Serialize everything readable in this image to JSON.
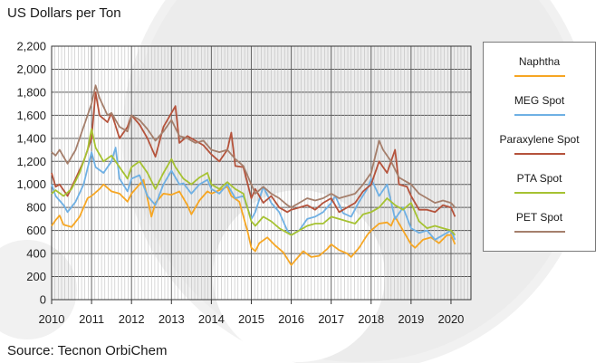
{
  "chart_data": {
    "type": "line",
    "ylabel": "US Dollars per Ton",
    "source": "Source: Tecnon OrbiChem",
    "ylim": [
      0,
      2200
    ],
    "yticks": [
      "0",
      "200",
      "400",
      "600",
      "800",
      "1,000",
      "1,200",
      "1,400",
      "1,600",
      "1,800",
      "2,000",
      "2,200"
    ],
    "xlim": [
      2010,
      2020.5
    ],
    "xticks": [
      "2010",
      "2011",
      "2012",
      "2013",
      "2014",
      "2015",
      "2016",
      "2017",
      "2018",
      "2019",
      "2020"
    ],
    "grid": true,
    "legend_position": "right",
    "series": [
      {
        "name": "Naphtha",
        "color": "#f6a623",
        "points": [
          [
            2010.0,
            640
          ],
          [
            2010.1,
            690
          ],
          [
            2010.2,
            730
          ],
          [
            2010.3,
            650
          ],
          [
            2010.5,
            630
          ],
          [
            2010.7,
            720
          ],
          [
            2010.9,
            880
          ],
          [
            2011.0,
            900
          ],
          [
            2011.2,
            960
          ],
          [
            2011.3,
            1000
          ],
          [
            2011.5,
            940
          ],
          [
            2011.7,
            920
          ],
          [
            2011.9,
            850
          ],
          [
            2012.0,
            920
          ],
          [
            2012.2,
            1000
          ],
          [
            2012.3,
            1040
          ],
          [
            2012.4,
            880
          ],
          [
            2012.5,
            720
          ],
          [
            2012.6,
            840
          ],
          [
            2012.8,
            920
          ],
          [
            2013.0,
            910
          ],
          [
            2013.2,
            940
          ],
          [
            2013.4,
            820
          ],
          [
            2013.5,
            740
          ],
          [
            2013.7,
            860
          ],
          [
            2013.9,
            940
          ],
          [
            2014.0,
            920
          ],
          [
            2014.2,
            950
          ],
          [
            2014.4,
            980
          ],
          [
            2014.5,
            900
          ],
          [
            2014.7,
            850
          ],
          [
            2014.9,
            600
          ],
          [
            2015.0,
            450
          ],
          [
            2015.1,
            420
          ],
          [
            2015.2,
            490
          ],
          [
            2015.4,
            540
          ],
          [
            2015.6,
            470
          ],
          [
            2015.8,
            410
          ],
          [
            2016.0,
            300
          ],
          [
            2016.1,
            340
          ],
          [
            2016.3,
            420
          ],
          [
            2016.5,
            370
          ],
          [
            2016.7,
            380
          ],
          [
            2016.9,
            440
          ],
          [
            2017.0,
            480
          ],
          [
            2017.2,
            430
          ],
          [
            2017.4,
            400
          ],
          [
            2017.5,
            370
          ],
          [
            2017.7,
            450
          ],
          [
            2017.9,
            560
          ],
          [
            2018.0,
            600
          ],
          [
            2018.2,
            660
          ],
          [
            2018.4,
            670
          ],
          [
            2018.5,
            640
          ],
          [
            2018.6,
            720
          ],
          [
            2018.8,
            600
          ],
          [
            2019.0,
            480
          ],
          [
            2019.1,
            450
          ],
          [
            2019.3,
            520
          ],
          [
            2019.5,
            540
          ],
          [
            2019.7,
            490
          ],
          [
            2019.9,
            560
          ],
          [
            2020.0,
            560
          ],
          [
            2020.1,
            480
          ]
        ]
      },
      {
        "name": "MEG Spot",
        "color": "#6fb0e4",
        "points": [
          [
            2010.0,
            1000
          ],
          [
            2010.1,
            900
          ],
          [
            2010.3,
            820
          ],
          [
            2010.4,
            760
          ],
          [
            2010.6,
            850
          ],
          [
            2010.8,
            1000
          ],
          [
            2011.0,
            1280
          ],
          [
            2011.1,
            1150
          ],
          [
            2011.3,
            1100
          ],
          [
            2011.5,
            1200
          ],
          [
            2011.6,
            1320
          ],
          [
            2011.7,
            1050
          ],
          [
            2011.9,
            940
          ],
          [
            2012.0,
            1050
          ],
          [
            2012.2,
            1080
          ],
          [
            2012.4,
            900
          ],
          [
            2012.6,
            820
          ],
          [
            2012.8,
            1000
          ],
          [
            2013.0,
            1120
          ],
          [
            2013.2,
            1000
          ],
          [
            2013.3,
            1010
          ],
          [
            2013.5,
            920
          ],
          [
            2013.7,
            1000
          ],
          [
            2013.9,
            1040
          ],
          [
            2014.0,
            960
          ],
          [
            2014.2,
            920
          ],
          [
            2014.4,
            1000
          ],
          [
            2014.6,
            880
          ],
          [
            2014.8,
            900
          ],
          [
            2015.0,
            700
          ],
          [
            2015.1,
            760
          ],
          [
            2015.3,
            980
          ],
          [
            2015.5,
            840
          ],
          [
            2015.7,
            760
          ],
          [
            2015.9,
            600
          ],
          [
            2016.0,
            560
          ],
          [
            2016.2,
            600
          ],
          [
            2016.4,
            700
          ],
          [
            2016.6,
            720
          ],
          [
            2016.8,
            760
          ],
          [
            2017.0,
            840
          ],
          [
            2017.1,
            900
          ],
          [
            2017.3,
            750
          ],
          [
            2017.5,
            720
          ],
          [
            2017.7,
            850
          ],
          [
            2017.9,
            960
          ],
          [
            2018.0,
            1050
          ],
          [
            2018.2,
            900
          ],
          [
            2018.4,
            1000
          ],
          [
            2018.6,
            700
          ],
          [
            2018.8,
            800
          ],
          [
            2019.0,
            620
          ],
          [
            2019.2,
            580
          ],
          [
            2019.4,
            600
          ],
          [
            2019.6,
            520
          ],
          [
            2019.8,
            560
          ],
          [
            2020.0,
            600
          ],
          [
            2020.1,
            520
          ]
        ]
      },
      {
        "name": "Paraxylene Spot",
        "color": "#b5533c",
        "points": [
          [
            2010.0,
            1100
          ],
          [
            2010.1,
            980
          ],
          [
            2010.2,
            1000
          ],
          [
            2010.4,
            900
          ],
          [
            2010.6,
            1050
          ],
          [
            2010.8,
            1200
          ],
          [
            2011.0,
            1400
          ],
          [
            2011.1,
            1800
          ],
          [
            2011.2,
            1600
          ],
          [
            2011.4,
            1540
          ],
          [
            2011.5,
            1620
          ],
          [
            2011.7,
            1400
          ],
          [
            2011.9,
            1500
          ],
          [
            2012.0,
            1600
          ],
          [
            2012.2,
            1520
          ],
          [
            2012.4,
            1400
          ],
          [
            2012.6,
            1240
          ],
          [
            2012.8,
            1500
          ],
          [
            2013.0,
            1620
          ],
          [
            2013.1,
            1680
          ],
          [
            2013.2,
            1360
          ],
          [
            2013.4,
            1420
          ],
          [
            2013.6,
            1380
          ],
          [
            2013.8,
            1340
          ],
          [
            2014.0,
            1260
          ],
          [
            2014.2,
            1200
          ],
          [
            2014.4,
            1300
          ],
          [
            2014.5,
            1450
          ],
          [
            2014.6,
            1160
          ],
          [
            2014.8,
            1150
          ],
          [
            2015.0,
            880
          ],
          [
            2015.1,
            960
          ],
          [
            2015.3,
            840
          ],
          [
            2015.5,
            900
          ],
          [
            2015.7,
            800
          ],
          [
            2015.9,
            760
          ],
          [
            2016.0,
            780
          ],
          [
            2016.2,
            800
          ],
          [
            2016.4,
            820
          ],
          [
            2016.6,
            780
          ],
          [
            2016.8,
            840
          ],
          [
            2017.0,
            880
          ],
          [
            2017.2,
            760
          ],
          [
            2017.4,
            800
          ],
          [
            2017.6,
            840
          ],
          [
            2017.8,
            940
          ],
          [
            2018.0,
            1000
          ],
          [
            2018.2,
            1200
          ],
          [
            2018.4,
            1100
          ],
          [
            2018.6,
            1300
          ],
          [
            2018.7,
            1000
          ],
          [
            2018.9,
            980
          ],
          [
            2019.0,
            900
          ],
          [
            2019.2,
            780
          ],
          [
            2019.4,
            780
          ],
          [
            2019.6,
            760
          ],
          [
            2019.8,
            820
          ],
          [
            2020.0,
            800
          ],
          [
            2020.1,
            720
          ]
        ]
      },
      {
        "name": "PTA Spot",
        "color": "#a6c232",
        "points": [
          [
            2010.0,
            920
          ],
          [
            2010.1,
            950
          ],
          [
            2010.3,
            900
          ],
          [
            2010.5,
            960
          ],
          [
            2010.7,
            1100
          ],
          [
            2010.9,
            1300
          ],
          [
            2011.0,
            1480
          ],
          [
            2011.1,
            1320
          ],
          [
            2011.3,
            1200
          ],
          [
            2011.5,
            1250
          ],
          [
            2011.7,
            1150
          ],
          [
            2011.9,
            1050
          ],
          [
            2012.0,
            1150
          ],
          [
            2012.2,
            1200
          ],
          [
            2012.4,
            1100
          ],
          [
            2012.6,
            960
          ],
          [
            2012.8,
            1100
          ],
          [
            2013.0,
            1220
          ],
          [
            2013.1,
            1150
          ],
          [
            2013.3,
            1050
          ],
          [
            2013.5,
            1000
          ],
          [
            2013.7,
            1060
          ],
          [
            2013.9,
            1100
          ],
          [
            2014.0,
            1000
          ],
          [
            2014.2,
            960
          ],
          [
            2014.4,
            1020
          ],
          [
            2014.6,
            960
          ],
          [
            2014.8,
            920
          ],
          [
            2015.0,
            680
          ],
          [
            2015.1,
            640
          ],
          [
            2015.3,
            720
          ],
          [
            2015.5,
            680
          ],
          [
            2015.7,
            620
          ],
          [
            2015.9,
            580
          ],
          [
            2016.0,
            560
          ],
          [
            2016.2,
            600
          ],
          [
            2016.4,
            640
          ],
          [
            2016.6,
            660
          ],
          [
            2016.8,
            660
          ],
          [
            2017.0,
            720
          ],
          [
            2017.2,
            700
          ],
          [
            2017.4,
            680
          ],
          [
            2017.6,
            660
          ],
          [
            2017.8,
            740
          ],
          [
            2018.0,
            760
          ],
          [
            2018.2,
            800
          ],
          [
            2018.4,
            880
          ],
          [
            2018.6,
            820
          ],
          [
            2018.8,
            780
          ],
          [
            2019.0,
            840
          ],
          [
            2019.2,
            680
          ],
          [
            2019.4,
            620
          ],
          [
            2019.6,
            640
          ],
          [
            2019.8,
            620
          ],
          [
            2020.0,
            600
          ],
          [
            2020.1,
            560
          ]
        ]
      },
      {
        "name": "PET Spot",
        "color": "#a57f6c",
        "points": [
          [
            2010.0,
            1280
          ],
          [
            2010.1,
            1250
          ],
          [
            2010.2,
            1300
          ],
          [
            2010.4,
            1180
          ],
          [
            2010.6,
            1300
          ],
          [
            2010.8,
            1500
          ],
          [
            2011.0,
            1700
          ],
          [
            2011.1,
            1860
          ],
          [
            2011.2,
            1750
          ],
          [
            2011.4,
            1600
          ],
          [
            2011.5,
            1620
          ],
          [
            2011.7,
            1500
          ],
          [
            2011.9,
            1460
          ],
          [
            2012.0,
            1600
          ],
          [
            2012.2,
            1560
          ],
          [
            2012.4,
            1480
          ],
          [
            2012.6,
            1380
          ],
          [
            2012.8,
            1460
          ],
          [
            2013.0,
            1560
          ],
          [
            2013.2,
            1420
          ],
          [
            2013.4,
            1400
          ],
          [
            2013.6,
            1360
          ],
          [
            2013.8,
            1380
          ],
          [
            2014.0,
            1300
          ],
          [
            2014.2,
            1280
          ],
          [
            2014.4,
            1300
          ],
          [
            2014.6,
            1220
          ],
          [
            2014.8,
            1160
          ],
          [
            2015.0,
            1000
          ],
          [
            2015.1,
            920
          ],
          [
            2015.3,
            980
          ],
          [
            2015.5,
            920
          ],
          [
            2015.7,
            880
          ],
          [
            2015.9,
            820
          ],
          [
            2016.0,
            800
          ],
          [
            2016.2,
            840
          ],
          [
            2016.4,
            880
          ],
          [
            2016.6,
            860
          ],
          [
            2016.8,
            880
          ],
          [
            2017.0,
            920
          ],
          [
            2017.2,
            880
          ],
          [
            2017.4,
            900
          ],
          [
            2017.6,
            920
          ],
          [
            2017.8,
            1000
          ],
          [
            2018.0,
            1100
          ],
          [
            2018.2,
            1380
          ],
          [
            2018.3,
            1300
          ],
          [
            2018.5,
            1200
          ],
          [
            2018.7,
            1060
          ],
          [
            2018.9,
            1020
          ],
          [
            2019.0,
            1000
          ],
          [
            2019.2,
            920
          ],
          [
            2019.4,
            880
          ],
          [
            2019.6,
            840
          ],
          [
            2019.8,
            860
          ],
          [
            2020.0,
            840
          ],
          [
            2020.1,
            800
          ]
        ]
      }
    ]
  }
}
